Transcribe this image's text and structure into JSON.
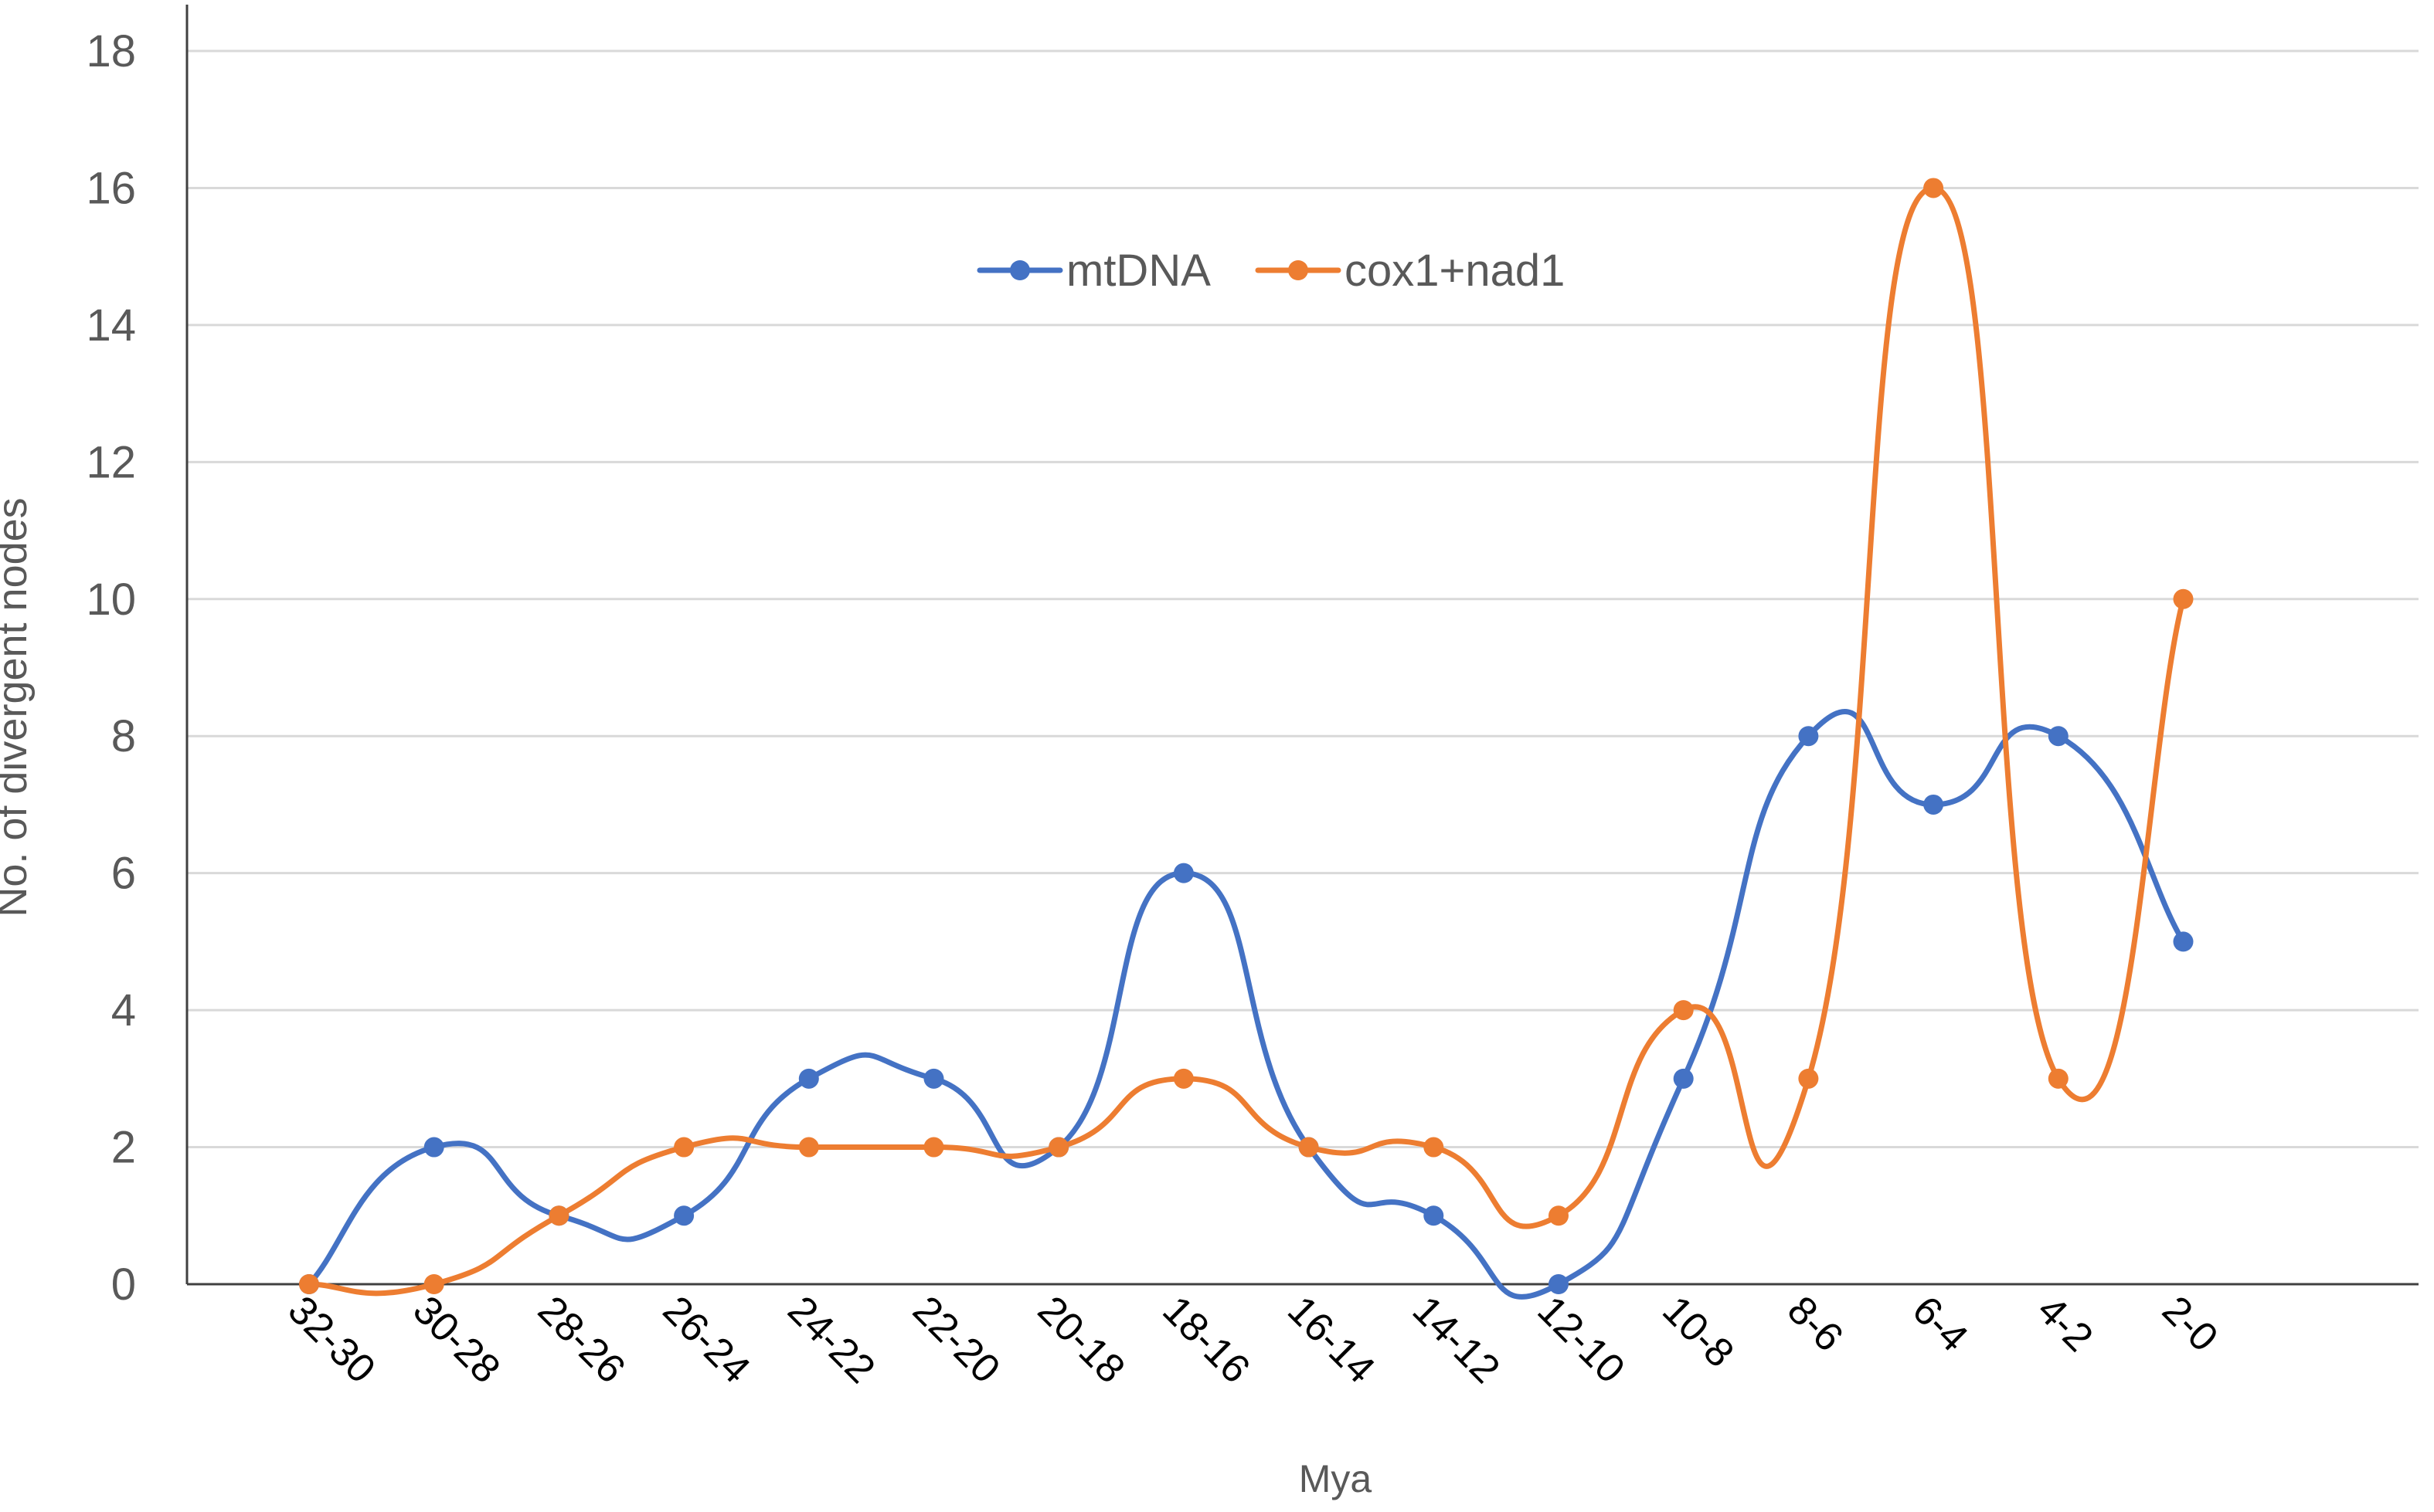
{
  "chart_data": {
    "type": "line",
    "title": "",
    "xlabel": "Mya",
    "ylabel": "No. of divergent nodes",
    "categories": [
      "32-30",
      "30-28",
      "28-26",
      "26-24",
      "24-22",
      "22-20",
      "20-18",
      "18-16",
      "16-14",
      "14-12",
      "12-10",
      "10-8",
      "8-6",
      "6-4",
      "4-2",
      "2-0"
    ],
    "ylim": [
      0,
      18
    ],
    "yticks": [
      "0",
      "2",
      "4",
      "6",
      "8",
      "10",
      "12",
      "14",
      "16",
      "18"
    ],
    "grid": "horizontal",
    "legend_position": "top-center",
    "smooth": true,
    "series": [
      {
        "name": "mtDNA",
        "color": "#4472C4",
        "values": [
          0,
          2,
          1,
          1,
          3,
          3,
          2,
          6,
          2,
          1,
          0,
          3,
          8,
          7,
          8,
          5
        ]
      },
      {
        "name": "cox1+nad1",
        "color": "#ED7D31",
        "values": [
          0,
          0,
          1,
          2,
          2,
          2,
          2,
          3,
          2,
          2,
          1,
          4,
          3,
          16,
          3,
          10
        ]
      }
    ]
  }
}
